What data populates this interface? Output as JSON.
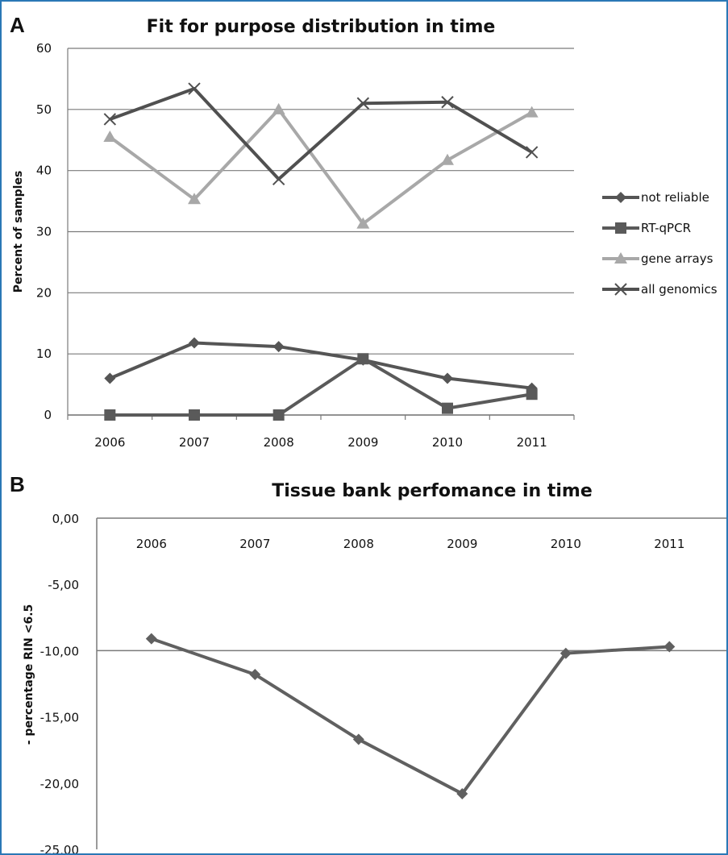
{
  "chart_data": [
    {
      "panel": "A",
      "type": "line",
      "title": "Fit for purpose distribution in time",
      "xlabel": "",
      "ylabel": "Percent of samples",
      "ylim": [
        0,
        60
      ],
      "yticks": [
        0,
        10,
        20,
        30,
        40,
        50,
        60
      ],
      "grid": true,
      "legend_position": "right",
      "categories": [
        "2006",
        "2007",
        "2008",
        "2009",
        "2010",
        "2011"
      ],
      "series": [
        {
          "name": "not reliable",
          "marker": "diamond",
          "color": "#555555",
          "values": [
            6.0,
            11.8,
            11.2,
            9.0,
            6.0,
            4.4
          ]
        },
        {
          "name": "RT-qPCR",
          "marker": "square",
          "color": "#5a5a5a",
          "values": [
            0,
            0,
            0,
            9.2,
            1.1,
            3.4
          ]
        },
        {
          "name": "gene arrays",
          "marker": "triangle",
          "color": "#a8a8a8",
          "values": [
            45.5,
            35.3,
            50.0,
            31.3,
            41.7,
            49.5
          ]
        },
        {
          "name": "all genomics",
          "marker": "x",
          "color": "#505050",
          "values": [
            48.4,
            53.4,
            38.6,
            51.0,
            51.2,
            43.0
          ]
        }
      ]
    },
    {
      "panel": "B",
      "type": "line",
      "title": "Tissue bank perfomance in time",
      "xlabel": "",
      "ylabel": "- percentage RIN <6.5",
      "ylim": [
        -25,
        0
      ],
      "yticks": [
        "0,00",
        "-5,00",
        "-10,00",
        "-15,00",
        "-20,00",
        "-25,00"
      ],
      "grid": true,
      "categories": [
        "2006",
        "2007",
        "2008",
        "2009",
        "2010",
        "2011"
      ],
      "series": [
        {
          "marker": "diamond",
          "color": "#606060",
          "values": [
            -9.1,
            -11.8,
            -16.7,
            -20.8,
            -10.2,
            -9.7
          ]
        }
      ]
    }
  ]
}
